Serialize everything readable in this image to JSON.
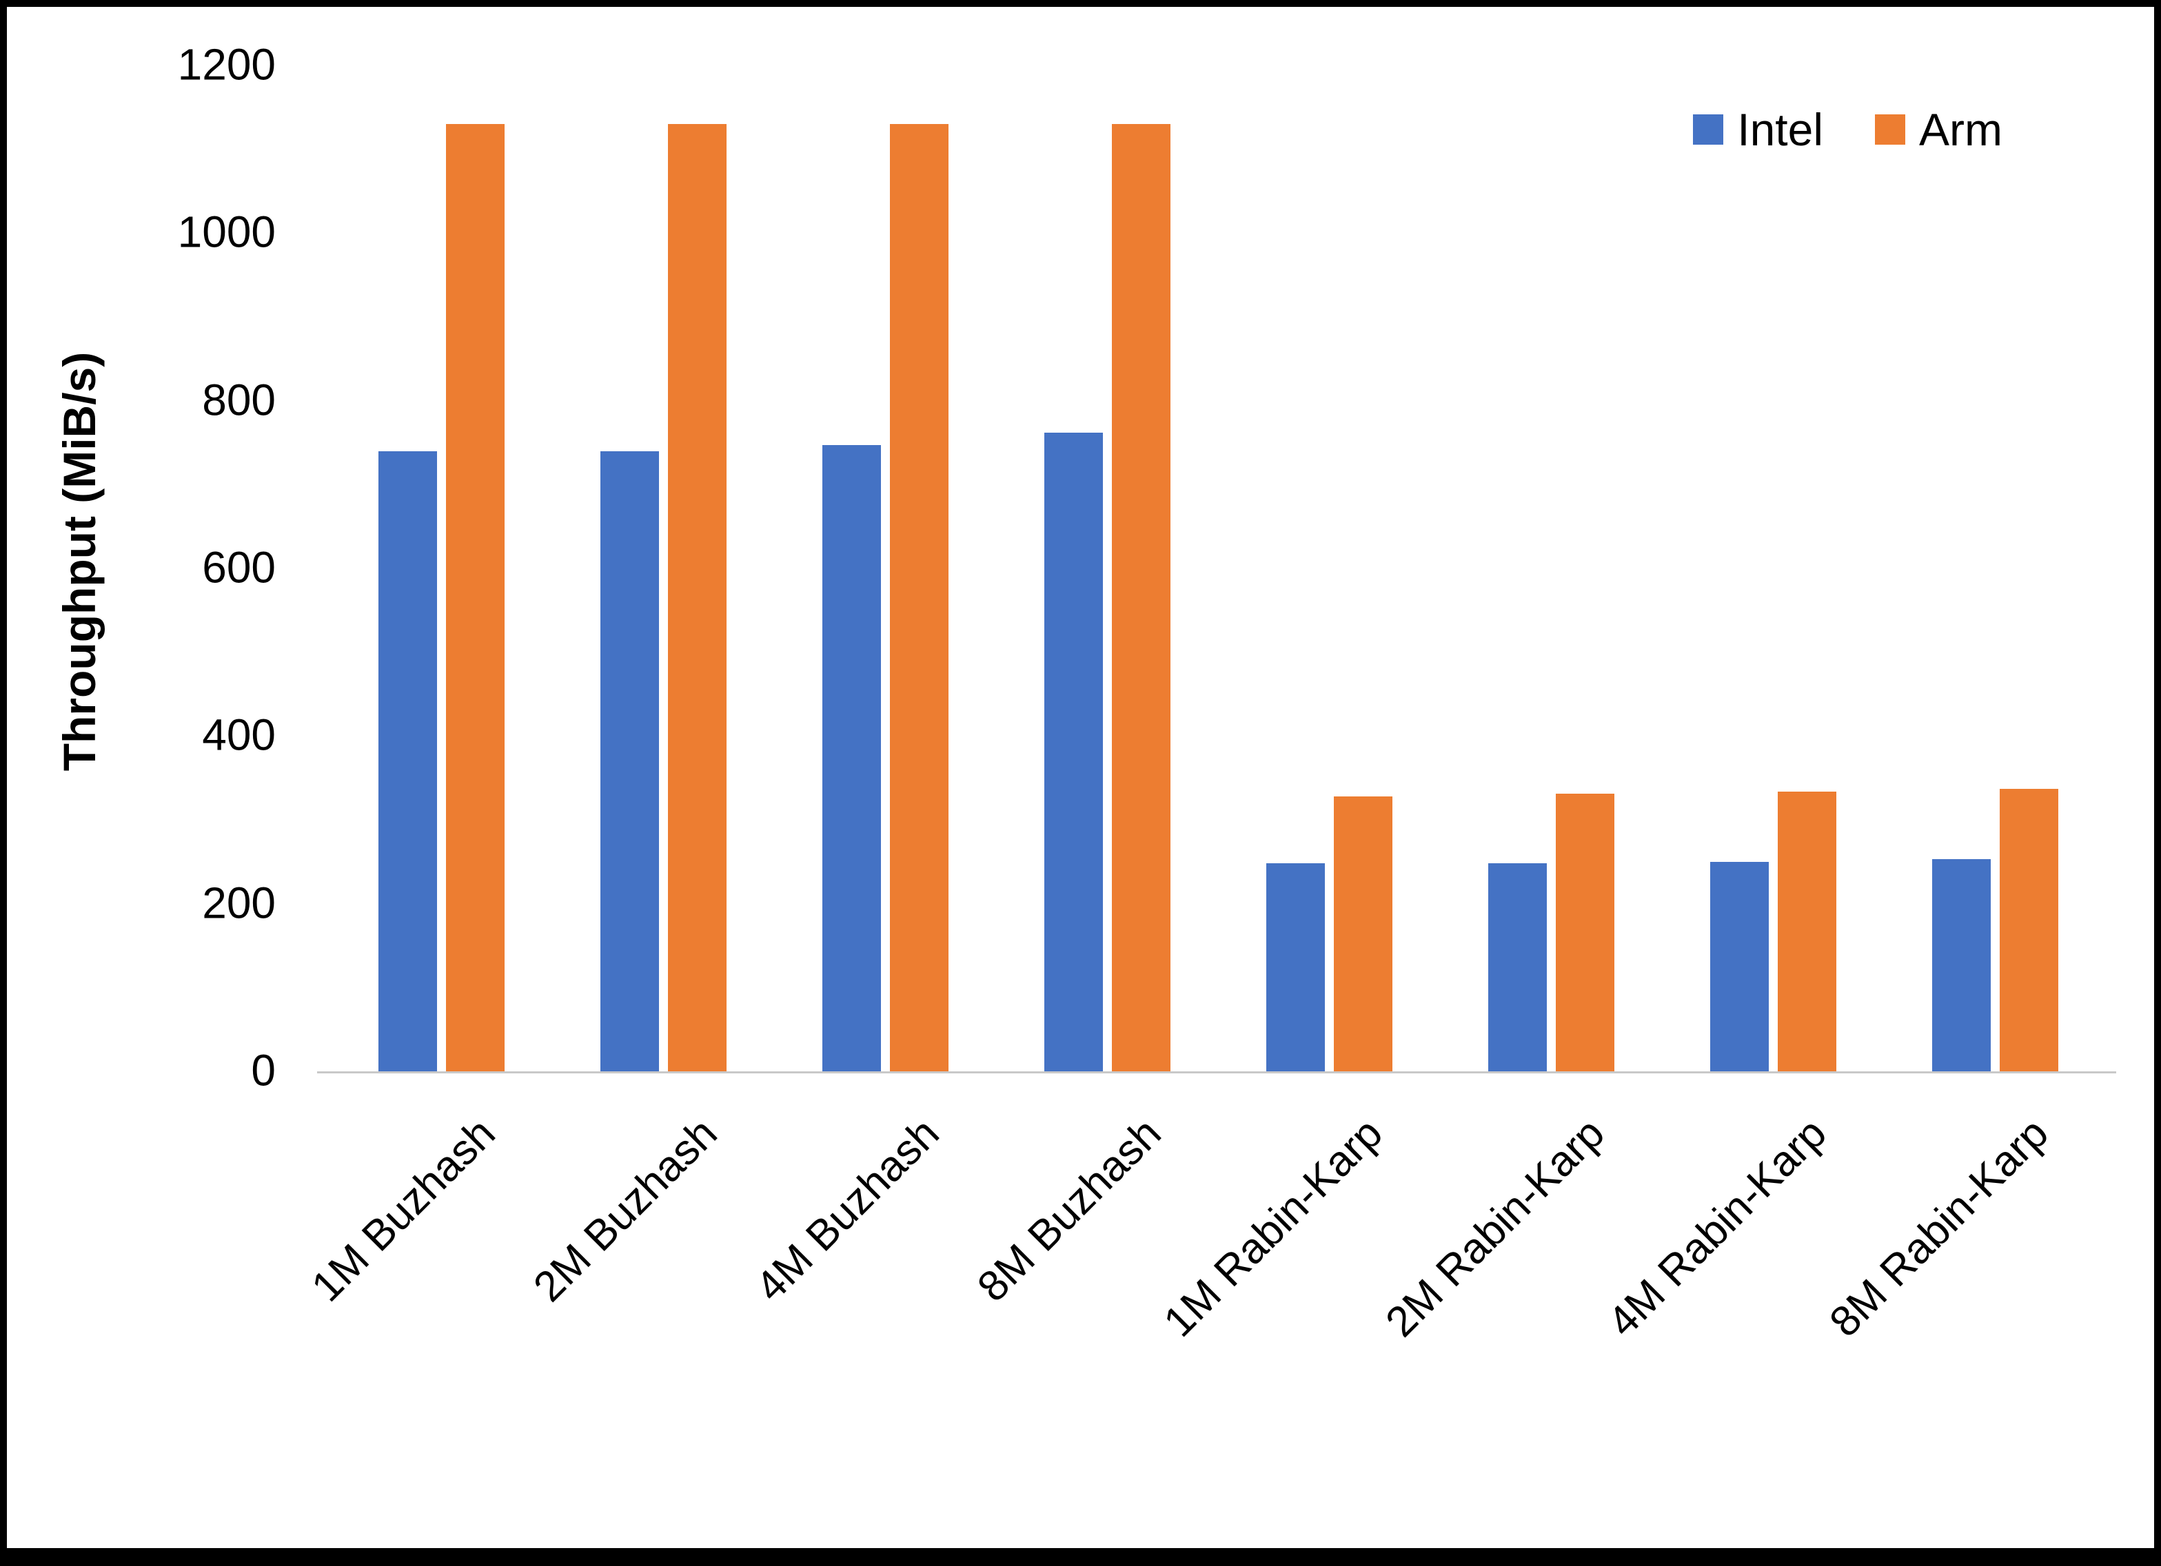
{
  "chart_data": {
    "type": "bar",
    "title": "",
    "xlabel": "",
    "ylabel": "Throughput (MiB/s)",
    "ylim": [
      0,
      1200
    ],
    "ytick_step": 200,
    "grid": false,
    "legend_position": "top-right",
    "categories": [
      "1M Buzhash",
      "2M Buzhash",
      "4M Buzhash",
      "8M Buzhash",
      "1M Rabin-Karp",
      "2M Rabin-Karp",
      "4M Rabin-Karp",
      "8M Rabin-Karp"
    ],
    "series": [
      {
        "name": "Intel",
        "color": "#4472C4",
        "values": [
          740,
          740,
          747,
          762,
          248,
          248,
          250,
          253
        ]
      },
      {
        "name": "Arm",
        "color": "#ED7D31",
        "values": [
          1130,
          1130,
          1130,
          1130,
          328,
          331,
          334,
          337
        ]
      }
    ]
  },
  "colors": {
    "axis_line": "#c9c9c9",
    "text": "#000000",
    "frame_border": "#000000"
  }
}
